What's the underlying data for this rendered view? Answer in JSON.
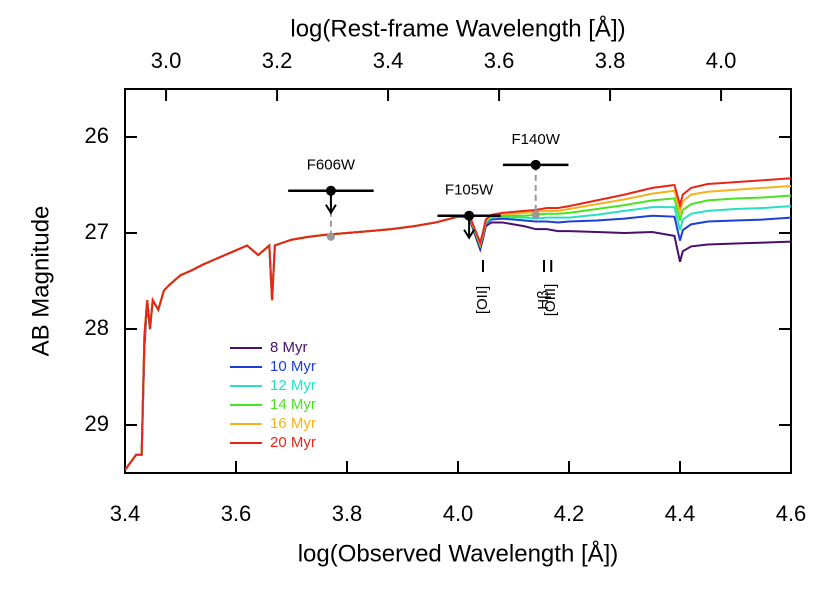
{
  "chart_data": {
    "type": "line",
    "xlabel": "log(Observed Wavelength [Å])",
    "ylabel": "AB Magnitude",
    "x2label": "log(Rest-frame Wavelength [Å])",
    "xlim": [
      3.4,
      4.6
    ],
    "xticks": [
      3.4,
      3.6,
      3.8,
      {
        "value": 4,
        "label": "4.0"
      },
      4.2,
      4.4,
      4.6
    ],
    "x2lim": [
      2.926,
      4.126
    ],
    "x2ticks": [
      {
        "value": 3,
        "label": "3.0"
      },
      3.2,
      3.4,
      3.6,
      3.8,
      {
        "value": 4,
        "label": "4.0"
      }
    ],
    "ylim": [
      29.5,
      25.5
    ],
    "yticks": [
      26,
      27,
      28,
      29
    ],
    "legend": "lower left",
    "x": [
      3.4,
      3.42,
      3.43,
      3.435,
      3.44,
      3.445,
      3.45,
      3.46,
      3.47,
      3.48,
      3.5,
      3.52,
      3.54,
      3.56,
      3.58,
      3.6,
      3.62,
      3.64,
      3.66,
      3.665,
      3.67,
      3.7,
      3.73,
      3.76,
      3.8,
      3.84,
      3.88,
      3.92,
      3.96,
      4.0,
      4.02,
      4.04,
      4.045,
      4.05,
      4.06,
      4.08,
      4.1,
      4.12,
      4.14,
      4.16,
      4.18,
      4.2,
      4.25,
      4.3,
      4.35,
      4.39,
      4.4,
      4.405,
      4.42,
      4.45,
      4.5,
      4.55,
      4.6
    ],
    "series": [
      {
        "name": "8 Myr",
        "color": "#4b0f6b",
        "values": [
          29.47,
          29.31,
          29.31,
          28.2,
          27.7,
          28.0,
          27.7,
          27.8,
          27.6,
          27.54,
          27.44,
          27.39,
          27.33,
          27.28,
          27.23,
          27.18,
          27.13,
          27.23,
          27.13,
          27.7,
          27.13,
          27.07,
          27.04,
          27.02,
          27.0,
          26.98,
          26.96,
          26.93,
          26.89,
          26.83,
          26.84,
          27.17,
          27.06,
          26.93,
          26.89,
          26.89,
          26.91,
          26.93,
          26.96,
          26.96,
          26.98,
          26.98,
          26.99,
          27.0,
          26.99,
          27.03,
          27.3,
          27.19,
          27.14,
          27.12,
          27.11,
          27.1,
          27.09
        ]
      },
      {
        "name": "10 Myr",
        "color": "#1c3fd6",
        "values": [
          29.47,
          29.31,
          29.31,
          28.15,
          27.7,
          28.0,
          27.7,
          27.8,
          27.6,
          27.54,
          27.44,
          27.39,
          27.33,
          27.28,
          27.23,
          27.18,
          27.13,
          27.23,
          27.13,
          27.7,
          27.13,
          27.07,
          27.04,
          27.02,
          27.0,
          26.98,
          26.96,
          26.93,
          26.89,
          26.83,
          26.83,
          27.14,
          27.03,
          26.9,
          26.86,
          26.85,
          26.86,
          26.87,
          26.88,
          26.88,
          26.89,
          26.88,
          26.87,
          26.85,
          26.82,
          26.83,
          27.08,
          26.97,
          26.91,
          26.88,
          26.87,
          26.86,
          26.84
        ]
      },
      {
        "name": "12 Myr",
        "color": "#27e0c4",
        "values": [
          29.47,
          29.31,
          29.31,
          28.1,
          27.7,
          28.0,
          27.7,
          27.8,
          27.6,
          27.54,
          27.44,
          27.39,
          27.33,
          27.28,
          27.23,
          27.18,
          27.13,
          27.23,
          27.13,
          27.7,
          27.13,
          27.07,
          27.04,
          27.02,
          27.0,
          26.98,
          26.96,
          26.93,
          26.89,
          26.83,
          26.82,
          27.13,
          27.02,
          26.89,
          26.84,
          26.83,
          26.84,
          26.84,
          26.85,
          26.84,
          26.84,
          26.84,
          26.81,
          26.77,
          26.73,
          26.73,
          26.97,
          26.86,
          26.8,
          26.77,
          26.75,
          26.74,
          26.72
        ]
      },
      {
        "name": "14 Myr",
        "color": "#4be31f",
        "values": [
          29.47,
          29.31,
          29.31,
          28.08,
          27.7,
          28.0,
          27.7,
          27.8,
          27.6,
          27.54,
          27.44,
          27.39,
          27.33,
          27.28,
          27.23,
          27.18,
          27.13,
          27.23,
          27.13,
          27.7,
          27.13,
          27.07,
          27.04,
          27.02,
          27.0,
          26.98,
          26.96,
          26.93,
          26.89,
          26.83,
          26.82,
          27.12,
          27.01,
          26.88,
          26.83,
          26.82,
          26.82,
          26.82,
          26.81,
          26.8,
          26.8,
          26.79,
          26.75,
          26.71,
          26.66,
          26.64,
          26.87,
          26.76,
          26.7,
          26.66,
          26.64,
          26.63,
          26.61
        ]
      },
      {
        "name": "16 Myr",
        "color": "#f5b21b",
        "values": [
          29.47,
          29.31,
          29.31,
          28.06,
          27.7,
          28.0,
          27.7,
          27.8,
          27.6,
          27.54,
          27.44,
          27.39,
          27.33,
          27.28,
          27.23,
          27.18,
          27.13,
          27.23,
          27.13,
          27.7,
          27.13,
          27.07,
          27.04,
          27.02,
          27.0,
          26.98,
          26.96,
          26.93,
          26.89,
          26.83,
          26.81,
          27.11,
          27.0,
          26.87,
          26.82,
          26.8,
          26.8,
          26.79,
          26.78,
          26.77,
          26.77,
          26.75,
          26.7,
          26.65,
          26.59,
          26.56,
          26.78,
          26.67,
          26.6,
          26.57,
          26.55,
          26.53,
          26.51
        ]
      },
      {
        "name": "20 Myr",
        "color": "#e8251a",
        "values": [
          29.47,
          29.31,
          29.31,
          28.06,
          27.7,
          28.0,
          27.7,
          27.8,
          27.6,
          27.54,
          27.44,
          27.39,
          27.33,
          27.28,
          27.23,
          27.18,
          27.13,
          27.23,
          27.13,
          27.7,
          27.13,
          27.07,
          27.04,
          27.02,
          27.0,
          26.98,
          26.96,
          26.93,
          26.89,
          26.83,
          26.81,
          27.1,
          26.99,
          26.86,
          26.81,
          26.79,
          26.78,
          26.77,
          26.76,
          26.74,
          26.74,
          26.72,
          26.66,
          26.6,
          26.53,
          26.5,
          26.71,
          26.6,
          26.53,
          26.49,
          26.47,
          26.45,
          26.43
        ]
      }
    ],
    "photometry": [
      {
        "name": "F606W",
        "x": 3.771,
        "value": 26.56,
        "xerr": 0.077,
        "upper_limit": true,
        "model": 27.04
      },
      {
        "name": "F105W",
        "x": 4.02,
        "value": 26.82,
        "xerr": 0.057,
        "upper_limit": true,
        "model": 26.83
      },
      {
        "name": "F140W",
        "x": 4.14,
        "value": 26.29,
        "xerr": 0.059,
        "upper_limit": false,
        "model": 26.81
      }
    ],
    "line_labels": [
      {
        "text": "[OII]",
        "x": 4.045
      },
      {
        "text": "Hβ",
        "x": 4.155
      },
      {
        "text": "[OIII]",
        "x": 4.168
      }
    ]
  }
}
